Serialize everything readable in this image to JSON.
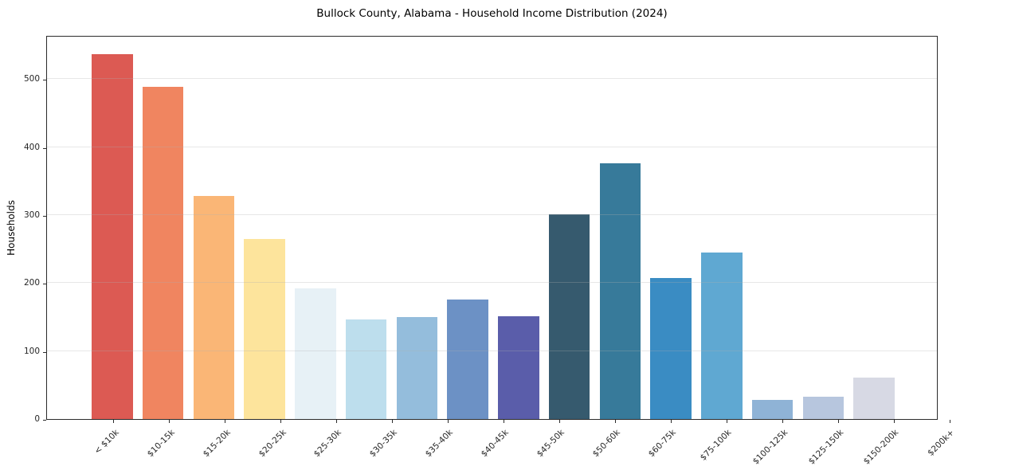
{
  "chart_data": {
    "type": "bar",
    "title": "Bullock County, Alabama - Household Income Distribution (2024)",
    "xlabel": "",
    "ylabel": "Households",
    "categories": [
      "< $10k",
      "$10-15k",
      "$15-20k",
      "$20-25k",
      "$25-30k",
      "$30-35k",
      "$35-40k",
      "$40-45k",
      "$45-50k",
      "$50-60k",
      "$60-75k",
      "$75-100k",
      "$100-125k",
      "$125-150k",
      "$150-200k",
      "$200k+"
    ],
    "values": [
      537,
      489,
      328,
      265,
      192,
      147,
      150,
      176,
      151,
      301,
      376,
      208,
      245,
      28,
      33,
      61
    ],
    "bar_colors": [
      "#dc5a53",
      "#f08560",
      "#fab676",
      "#fde49c",
      "#e7f1f6",
      "#bddeed",
      "#94bddc",
      "#6c91c5",
      "#5a5daa",
      "#365a6e",
      "#377a9a",
      "#3a8cc3",
      "#5fa8d2",
      "#8fb3d6",
      "#b7c6de",
      "#d7d9e4"
    ],
    "yticks": [
      0,
      100,
      200,
      300,
      400,
      500
    ],
    "ylim": [
      0,
      565
    ],
    "grid": "horizontal-only",
    "legend": "none",
    "plot_border_color": "#2b2b2b",
    "gridline_color": "#b0b0b0"
  }
}
